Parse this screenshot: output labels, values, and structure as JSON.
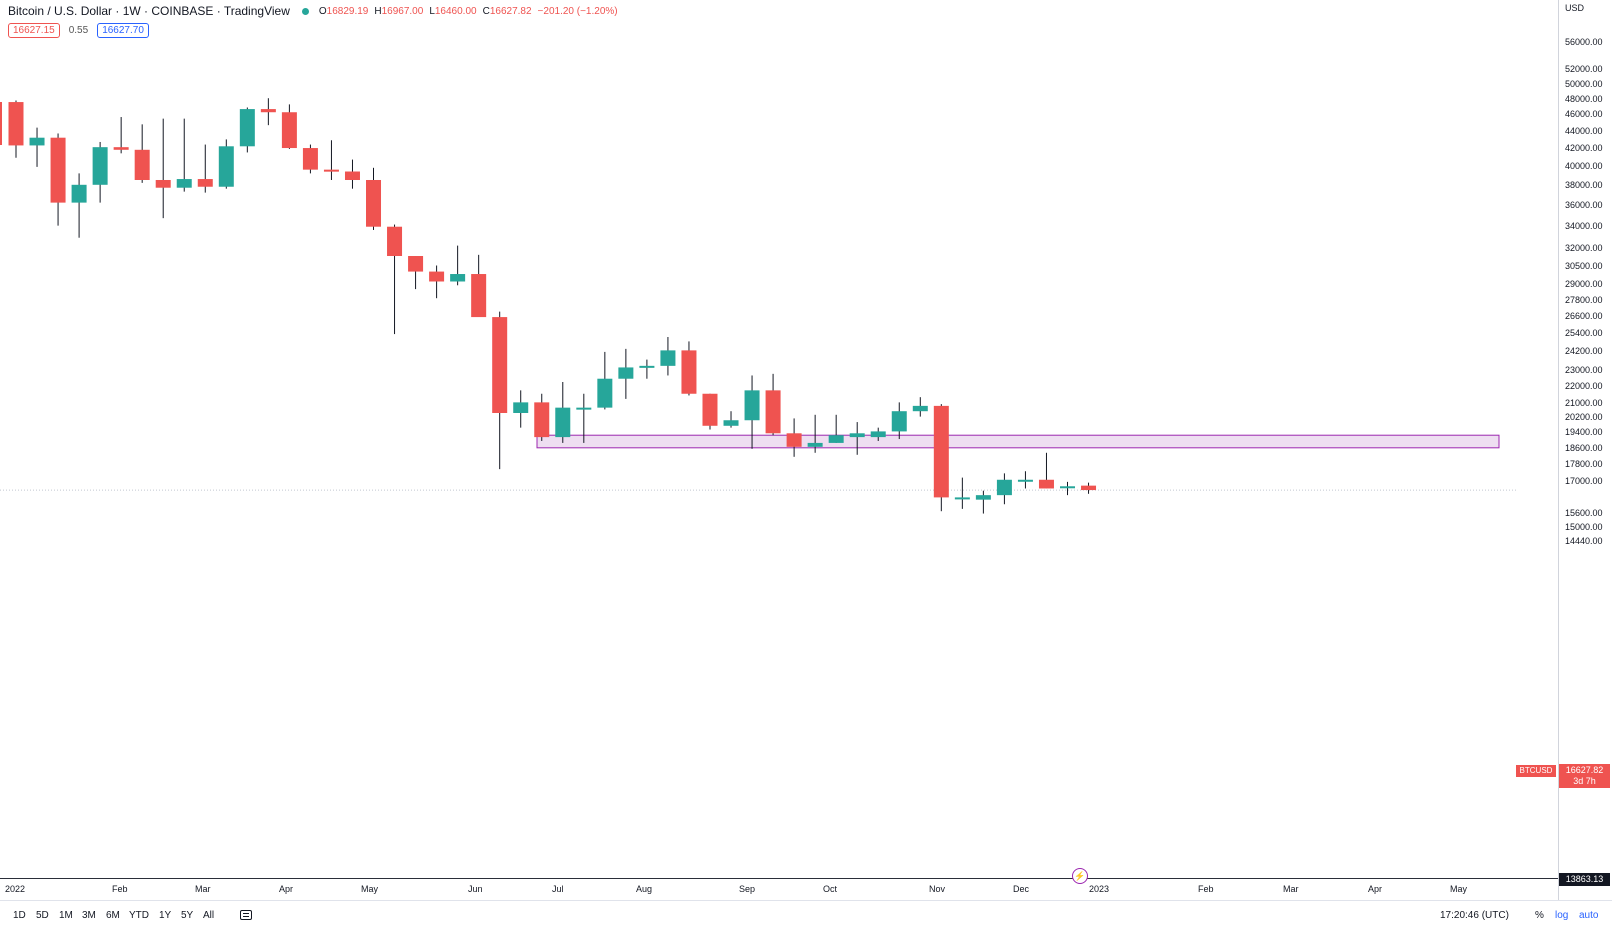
{
  "header": {
    "title": "Bitcoin / U.S. Dollar · 1W · COINBASE · TradingView",
    "open_label": "O",
    "open": "16829.19",
    "high_label": "H",
    "high": "16967.00",
    "low_label": "L",
    "low": "16460.00",
    "close_label": "C",
    "close": "16627.82",
    "change": "−201.20 (−1.20%)",
    "bid": "16627.15",
    "spread": "0.55",
    "ask": "16627.70"
  },
  "colors": {
    "up": "#26a69a",
    "down": "#ef5350",
    "zone_fill": "#e8d3ec",
    "zone_border": "#9c27b0"
  },
  "price_axis": {
    "currency": "USD",
    "labels": [
      "56000.00",
      "52000.00",
      "50000.00",
      "48000.00",
      "46000.00",
      "44000.00",
      "42000.00",
      "40000.00",
      "38000.00",
      "36000.00",
      "34000.00",
      "32000.00",
      "30500.00",
      "29000.00",
      "27800.00",
      "26600.00",
      "25400.00",
      "24200.00",
      "23000.00",
      "22000.00",
      "21000.00",
      "20200.00",
      "19400.00",
      "18600.00",
      "17800.00",
      "17000.00",
      "15600.00",
      "15000.00",
      "14440.00"
    ],
    "symbol_badge": "BTCUSD",
    "last_price": "16627.82",
    "countdown": "3d 7h",
    "low_marker": "13863.13"
  },
  "time_axis": {
    "labels": [
      "2022",
      "Feb",
      "Mar",
      "Apr",
      "May",
      "Jun",
      "Jul",
      "Aug",
      "Sep",
      "Oct",
      "Nov",
      "Dec",
      "2023",
      "Feb",
      "Mar",
      "Apr",
      "May"
    ]
  },
  "bottom_bar": {
    "ranges": [
      "1D",
      "5D",
      "1M",
      "3M",
      "6M",
      "YTD",
      "1Y",
      "5Y",
      "All"
    ],
    "clock": "17:20:46 (UTC)",
    "percent": "%",
    "log": "log",
    "auto": "auto"
  },
  "chart_data": {
    "type": "candlestick",
    "scale": "log",
    "ylim": [
      13800,
      60000
    ],
    "interval": "1W",
    "candles": [
      {
        "o": 47700,
        "h": 47900,
        "l": 41000,
        "c": 42400
      },
      {
        "o": 42400,
        "h": 44500,
        "l": 40000,
        "c": 43300
      },
      {
        "o": 43300,
        "h": 43800,
        "l": 34100,
        "c": 36300
      },
      {
        "o": 36300,
        "h": 39300,
        "l": 33000,
        "c": 38100
      },
      {
        "o": 38100,
        "h": 42800,
        "l": 36300,
        "c": 42200
      },
      {
        "o": 42200,
        "h": 45800,
        "l": 41500,
        "c": 41900
      },
      {
        "o": 41900,
        "h": 44900,
        "l": 38300,
        "c": 38600
      },
      {
        "o": 38600,
        "h": 45600,
        "l": 34800,
        "c": 37800
      },
      {
        "o": 37800,
        "h": 45600,
        "l": 37400,
        "c": 38700
      },
      {
        "o": 38700,
        "h": 42500,
        "l": 37300,
        "c": 37900
      },
      {
        "o": 37900,
        "h": 43100,
        "l": 37700,
        "c": 42300
      },
      {
        "o": 42300,
        "h": 47000,
        "l": 41600,
        "c": 46800
      },
      {
        "o": 46800,
        "h": 48200,
        "l": 44800,
        "c": 46400
      },
      {
        "o": 46400,
        "h": 47400,
        "l": 42000,
        "c": 42100
      },
      {
        "o": 42100,
        "h": 42500,
        "l": 39300,
        "c": 39700
      },
      {
        "o": 39700,
        "h": 43000,
        "l": 38600,
        "c": 39500
      },
      {
        "o": 39500,
        "h": 40800,
        "l": 37700,
        "c": 38600
      },
      {
        "o": 38600,
        "h": 39900,
        "l": 33700,
        "c": 34000
      },
      {
        "o": 34000,
        "h": 34200,
        "l": 25400,
        "c": 31400
      },
      {
        "o": 31400,
        "h": 31400,
        "l": 28700,
        "c": 30100
      },
      {
        "o": 30100,
        "h": 30600,
        "l": 28000,
        "c": 29300
      },
      {
        "o": 29300,
        "h": 32300,
        "l": 29000,
        "c": 29900
      },
      {
        "o": 29900,
        "h": 31500,
        "l": 26700,
        "c": 26600
      },
      {
        "o": 26600,
        "h": 27000,
        "l": 17600,
        "c": 20500
      },
      {
        "o": 20500,
        "h": 21800,
        "l": 19700,
        "c": 21100
      },
      {
        "o": 21100,
        "h": 21600,
        "l": 19000,
        "c": 19200
      },
      {
        "o": 19200,
        "h": 22300,
        "l": 18900,
        "c": 20800
      },
      {
        "o": 20700,
        "h": 21600,
        "l": 18900,
        "c": 20800
      },
      {
        "o": 20800,
        "h": 24200,
        "l": 20700,
        "c": 22500
      },
      {
        "o": 22500,
        "h": 24400,
        "l": 21300,
        "c": 23200
      },
      {
        "o": 23200,
        "h": 23700,
        "l": 22500,
        "c": 23300
      },
      {
        "o": 23300,
        "h": 25200,
        "l": 22700,
        "c": 24300
      },
      {
        "o": 24300,
        "h": 24900,
        "l": 21500,
        "c": 21600
      },
      {
        "o": 21600,
        "h": 21600,
        "l": 19600,
        "c": 19800
      },
      {
        "o": 19800,
        "h": 20600,
        "l": 19700,
        "c": 20100
      },
      {
        "o": 20100,
        "h": 22700,
        "l": 18600,
        "c": 21800
      },
      {
        "o": 21800,
        "h": 22800,
        "l": 19300,
        "c": 19400
      },
      {
        "o": 19400,
        "h": 20200,
        "l": 18200,
        "c": 18700
      },
      {
        "o": 18700,
        "h": 20400,
        "l": 18400,
        "c": 18900
      },
      {
        "o": 18900,
        "h": 20400,
        "l": 18900,
        "c": 19300
      },
      {
        "o": 19200,
        "h": 20000,
        "l": 18300,
        "c": 19400
      },
      {
        "o": 19200,
        "h": 19700,
        "l": 19000,
        "c": 19500
      },
      {
        "o": 19500,
        "h": 21100,
        "l": 19100,
        "c": 20600
      },
      {
        "o": 20600,
        "h": 21400,
        "l": 20300,
        "c": 20900
      },
      {
        "o": 20900,
        "h": 21000,
        "l": 15700,
        "c": 16300
      },
      {
        "o": 16300,
        "h": 17200,
        "l": 15800,
        "c": 16300
      },
      {
        "o": 16200,
        "h": 16600,
        "l": 15600,
        "c": 16400
      },
      {
        "o": 16400,
        "h": 17400,
        "l": 16000,
        "c": 17100
      },
      {
        "o": 17100,
        "h": 17500,
        "l": 16700,
        "c": 17100
      },
      {
        "o": 17100,
        "h": 18400,
        "l": 16700,
        "c": 16700
      },
      {
        "o": 16800,
        "h": 17000,
        "l": 16400,
        "c": 16800
      },
      {
        "o": 16829,
        "h": 16967,
        "l": 16460,
        "c": 16628
      }
    ],
    "zones": [
      {
        "top": 19300,
        "bottom": 18650
      }
    ]
  }
}
